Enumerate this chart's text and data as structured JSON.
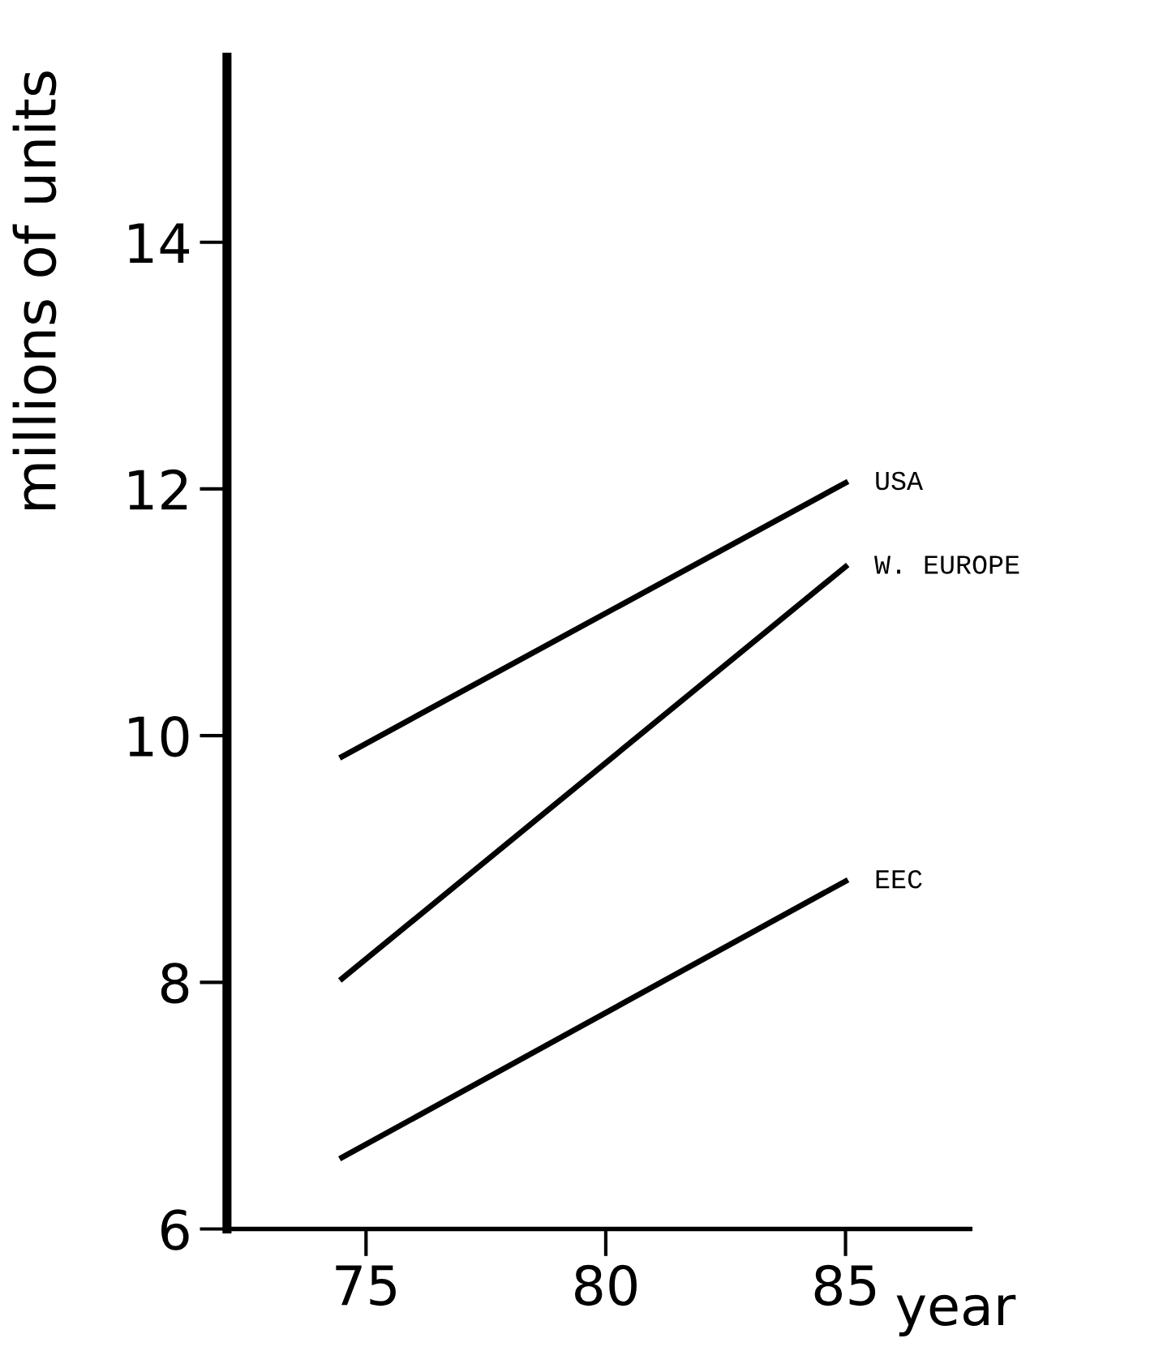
{
  "chart_data": {
    "type": "line",
    "xlabel": "year",
    "ylabel": "millions of units",
    "x": [
      74.5,
      85
    ],
    "series": [
      {
        "name": "USA",
        "color": "#000000",
        "values": [
          9.83,
          12.05
        ]
      },
      {
        "name": "W. EUROPE",
        "color": "#000000",
        "values": [
          8.03,
          11.37
        ]
      },
      {
        "name": "EEC",
        "color": "#000000",
        "values": [
          6.58,
          8.82
        ]
      }
    ],
    "xlim": [
      72.1,
      87.6
    ],
    "ylim": [
      6,
      15.5
    ],
    "xticks": [
      75,
      80,
      85
    ],
    "yticks": [
      6,
      8,
      10,
      12,
      14
    ],
    "grid": false,
    "legend": false,
    "marker": "none",
    "line_style": "solid"
  }
}
